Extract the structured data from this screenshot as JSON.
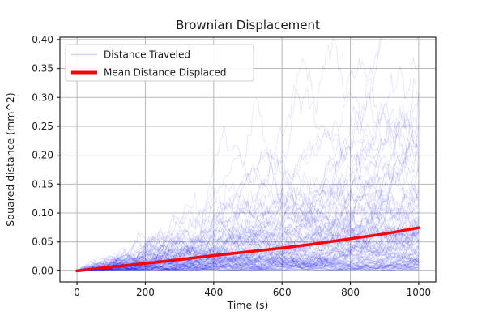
{
  "figure": {
    "background": "#ffffff"
  },
  "chart_data": {
    "type": "line",
    "title": "Brownian Displacement",
    "xlabel": "Time (s)",
    "ylabel": "Squared distance (mm^2)",
    "xlim": [
      -50,
      1050
    ],
    "ylim": [
      -0.019,
      0.404
    ],
    "xticks": [
      0,
      200,
      400,
      600,
      800,
      1000
    ],
    "xtick_labels": [
      "0",
      "200",
      "400",
      "600",
      "800",
      "1000"
    ],
    "yticks": [
      0.0,
      0.05,
      0.1,
      0.15,
      0.2,
      0.25,
      0.3,
      0.35,
      0.4
    ],
    "ytick_labels": [
      "0.00",
      "0.05",
      "0.10",
      "0.15",
      "0.20",
      "0.25",
      "0.30",
      "0.35",
      "0.40"
    ],
    "grid": true,
    "grid_color": "#b8b8b8",
    "spine_color": "#262626",
    "tick_color": "#262626",
    "text_color": "#1a1a1a",
    "legend": {
      "position": "upper-left",
      "border_color": "#cccccc",
      "fill_color": "#ffffff",
      "entries": [
        {
          "label": "Distance Traveled",
          "color": "#0000ff",
          "opacity": 0.18,
          "linewidth": 1.5
        },
        {
          "label": "Mean Distance Displaced",
          "color": "#ff0000",
          "opacity": 1,
          "linewidth": 4
        }
      ]
    },
    "series": [
      {
        "name": "Distance Traveled",
        "style": "ensemble-random-walk",
        "color": "#0000ff",
        "opacity": 0.1,
        "linewidth": 0.9,
        "count": 115,
        "steps": 200,
        "t_max": 1000,
        "mean_final": 0.078,
        "seed": 1337
      },
      {
        "name": "Mean Distance Displaced",
        "style": "line",
        "color": "#ff0000",
        "linewidth": 3.5,
        "x": [
          0,
          100,
          200,
          300,
          400,
          500,
          600,
          700,
          800,
          900,
          1000
        ],
        "y": [
          0.0,
          0.0065,
          0.013,
          0.0195,
          0.0265,
          0.033,
          0.0395,
          0.047,
          0.0555,
          0.064,
          0.0745
        ]
      }
    ]
  }
}
